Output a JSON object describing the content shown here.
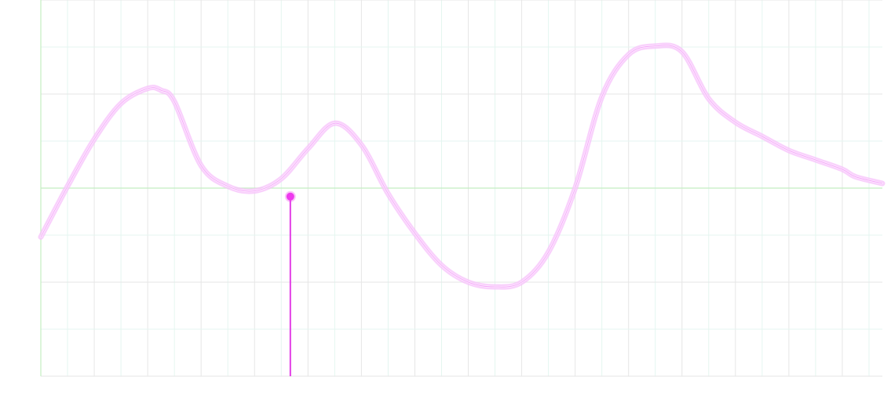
{
  "chart_data": {
    "type": "line",
    "title": "",
    "xlabel": "",
    "ylabel": "",
    "grid": true,
    "legend": "none",
    "xlim": [
      0,
      15.75
    ],
    "ylim": [
      -2,
      2
    ],
    "series": [
      {
        "x": [
          0,
          0.5,
          1,
          1.5,
          2,
          2.25,
          2.5,
          3,
          3.5,
          4,
          4.5,
          5,
          5.5,
          6,
          6.5,
          7,
          7.5,
          8,
          8.5,
          9,
          9.5,
          10,
          10.5,
          11,
          11.5,
          12,
          12.5,
          13,
          13.5,
          14,
          14.5,
          15,
          15.25,
          15.75
        ],
        "y": [
          -0.52,
          0.02,
          0.52,
          0.9,
          1.06,
          1.04,
          0.92,
          0.24,
          0.02,
          -0.03,
          0.1,
          0.42,
          0.69,
          0.46,
          -0.06,
          -0.48,
          -0.82,
          -1.0,
          -1.05,
          -1.0,
          -0.68,
          0.0,
          0.97,
          1.42,
          1.51,
          1.45,
          0.95,
          0.7,
          0.55,
          0.4,
          0.3,
          0.2,
          0.12,
          0.05
        ]
      }
    ],
    "vline_x": 0,
    "hline_y": 0,
    "highlight": {
      "x": 4.67,
      "y": -0.09
    },
    "colors": {
      "line": "#ef64f5",
      "line_glow": "#f7c2fb",
      "marker": "#ee3aee",
      "drop_line": "#e23ee6",
      "axis_line": "#c4eec2",
      "grid_primary": "#e6e6e6",
      "grid_secondary": "#e4f6f0"
    }
  }
}
